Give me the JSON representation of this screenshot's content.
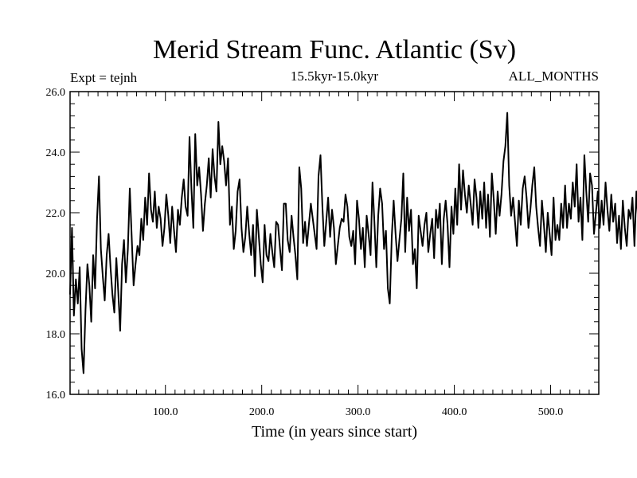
{
  "chart_data": {
    "type": "line",
    "title": "Merid Stream Func. Atlantic (Sv)",
    "subtitle": "15.5kyr-15.0kyr",
    "annotation_left": "Expt = tejnh",
    "annotation_right": "ALL_MONTHS",
    "xlabel": "Time (in years since start)",
    "ylabel": "",
    "xlim": [
      1,
      550
    ],
    "ylim": [
      16.0,
      26.0
    ],
    "xticks": [
      100,
      200,
      300,
      400,
      500
    ],
    "xtick_labels": [
      "100.0",
      "200.0",
      "300.0",
      "400.0",
      "500.0"
    ],
    "yticks": [
      16,
      18,
      20,
      22,
      24,
      26
    ],
    "ytick_labels": [
      "16.0",
      "18.0",
      "20.0",
      "22.0",
      "24.0",
      "26.0"
    ],
    "series": [
      {
        "name": "Merid Stream Func. Atlantic",
        "x_start": 1,
        "x_step": 2,
        "values": [
          19.3,
          21.5,
          18.6,
          19.8,
          19.0,
          20.2,
          17.5,
          16.7,
          18.8,
          20.3,
          19.6,
          18.4,
          20.6,
          19.5,
          21.8,
          23.2,
          20.8,
          19.9,
          19.1,
          20.6,
          21.3,
          20.2,
          19.3,
          18.7,
          20.5,
          19.4,
          18.1,
          20.3,
          21.1,
          19.7,
          20.8,
          22.8,
          21.2,
          19.6,
          20.3,
          20.9,
          20.6,
          21.8,
          21.1,
          22.5,
          21.6,
          23.3,
          22.1,
          21.7,
          22.7,
          21.5,
          22.2,
          21.8,
          20.9,
          21.5,
          22.6,
          21.9,
          21.0,
          22.2,
          21.4,
          20.7,
          22.1,
          21.6,
          22.5,
          23.1,
          22.2,
          21.9,
          24.5,
          22.8,
          21.5,
          24.6,
          22.9,
          23.5,
          22.6,
          21.4,
          22.3,
          22.9,
          23.8,
          22.5,
          24.1,
          23.2,
          22.7,
          25.0,
          23.6,
          24.2,
          23.7,
          22.9,
          23.8,
          21.6,
          22.2,
          20.8,
          21.4,
          22.7,
          23.1,
          21.5,
          20.7,
          21.2,
          22.2,
          21.3,
          20.6,
          21.6,
          19.9,
          22.1,
          21.2,
          20.3,
          19.7,
          21.6,
          20.6,
          20.4,
          21.3,
          20.7,
          20.2,
          21.7,
          21.6,
          20.8,
          20.1,
          22.3,
          22.3,
          21.1,
          20.7,
          21.9,
          21.2,
          20.6,
          19.8,
          23.5,
          22.8,
          21.0,
          21.7,
          20.9,
          21.6,
          22.3,
          21.8,
          21.3,
          20.8,
          23.2,
          23.9,
          22.2,
          20.9,
          21.7,
          22.5,
          21.2,
          22.1,
          21.5,
          20.3,
          20.9,
          21.5,
          21.8,
          21.7,
          22.6,
          22.2,
          21.2,
          20.9,
          21.4,
          20.3,
          22.4,
          21.8,
          20.8,
          21.5,
          20.2,
          21.9,
          21.3,
          20.6,
          23.0,
          21.7,
          20.2,
          21.9,
          22.8,
          22.3,
          20.8,
          21.4,
          19.5,
          19.0,
          21.2,
          22.4,
          21.3,
          20.4,
          21.1,
          21.8,
          23.3,
          20.7,
          22.5,
          21.4,
          22.1,
          20.3,
          20.8,
          19.5,
          21.9,
          21.4,
          20.9,
          21.6,
          22.0,
          20.7,
          21.3,
          21.8,
          20.5,
          22.1,
          21.5,
          22.3,
          20.3,
          21.8,
          22.4,
          21.6,
          20.2,
          22.2,
          21.3,
          22.8,
          21.6,
          23.6,
          22.1,
          23.4,
          22.6,
          22.0,
          22.9,
          22.3,
          21.6,
          23.1,
          22.5,
          21.5,
          22.7,
          21.8,
          23.0,
          21.5,
          22.6,
          21.2,
          23.3,
          22.4,
          21.3,
          22.7,
          21.9,
          22.6,
          23.7,
          24.2,
          25.3,
          22.9,
          21.9,
          22.5,
          21.7,
          20.9,
          22.4,
          21.6,
          22.8,
          23.2,
          22.5,
          21.5,
          22.1,
          22.9,
          23.5,
          22.2,
          21.5,
          20.9,
          22.4,
          21.6,
          20.7,
          22.0,
          21.3,
          20.6,
          22.5,
          21.1,
          21.6,
          21.1,
          22.3,
          21.5,
          22.9,
          21.5,
          22.3,
          21.8,
          23.0,
          22.2,
          23.6,
          21.7,
          22.5,
          21.1,
          23.9,
          22.7,
          21.7,
          23.3,
          22.9,
          21.3,
          22.0,
          22.7,
          21.5,
          22.4,
          21.6,
          23.0,
          22.1,
          21.4,
          22.6,
          21.7,
          22.3,
          21.0,
          21.9,
          20.8,
          22.4,
          21.5,
          20.9,
          22.1,
          21.8,
          22.5,
          20.9,
          22.7,
          21.7,
          22.3,
          21.6,
          21.4,
          22.3,
          21.5,
          22.6,
          21.9,
          21.6,
          22.2,
          21.8
        ]
      }
    ]
  }
}
